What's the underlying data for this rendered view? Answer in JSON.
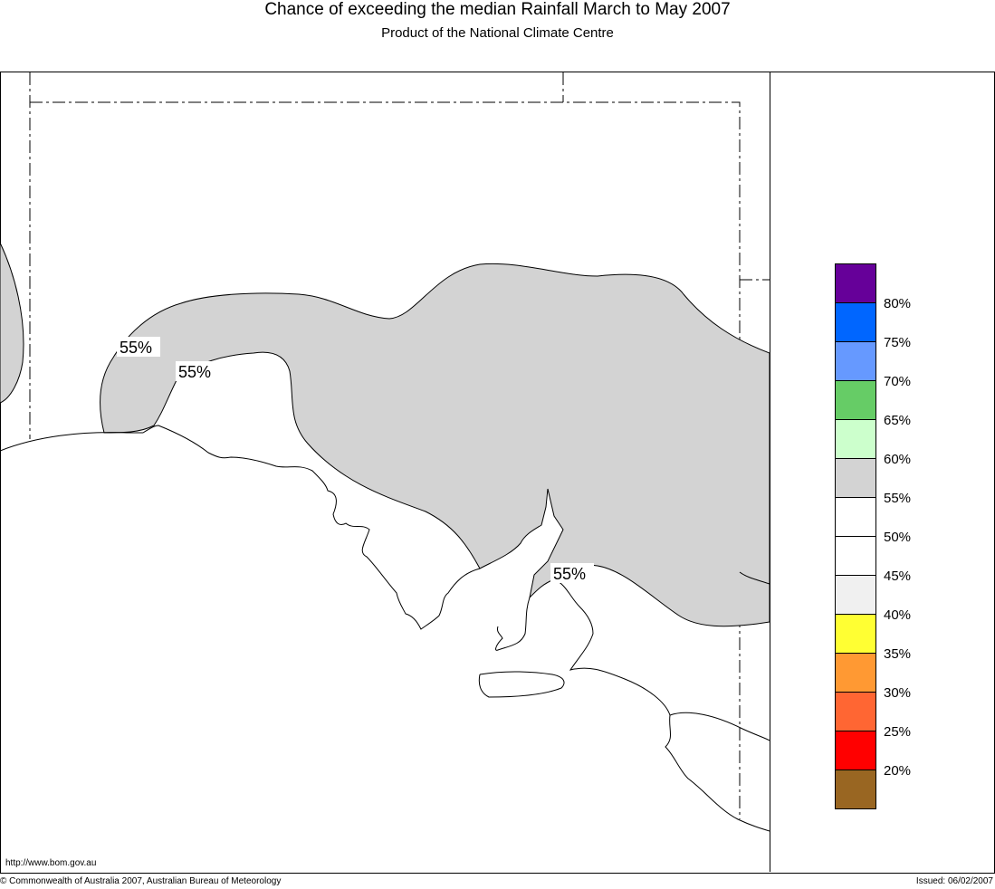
{
  "header": {
    "title": "Chance of exceeding the median Rainfall March to May 2007",
    "subtitle": "Product of the National Climate Centre"
  },
  "map": {
    "region": "South Australia",
    "shaded_band": {
      "range": "55%-60%",
      "color": "#d3d3d3"
    },
    "contour_labels": [
      "55%",
      "55%",
      "55%"
    ]
  },
  "legend": {
    "swatches": [
      {
        "color": "#660099"
      },
      {
        "color": "#0066ff"
      },
      {
        "color": "#6699ff"
      },
      {
        "color": "#66cc66"
      },
      {
        "color": "#ccffcc"
      },
      {
        "color": "#d3d3d3"
      },
      {
        "color": "#ffffff"
      },
      {
        "color": "#ffffff"
      },
      {
        "color": "#f0f0f0"
      },
      {
        "color": "#ffff33"
      },
      {
        "color": "#ff9933"
      },
      {
        "color": "#ff6633"
      },
      {
        "color": "#ff0000"
      },
      {
        "color": "#996622"
      }
    ],
    "labels": [
      "80%",
      "75%",
      "70%",
      "65%",
      "60%",
      "55%",
      "50%",
      "45%",
      "40%",
      "35%",
      "30%",
      "25%",
      "20%"
    ]
  },
  "footer": {
    "url": "http://www.bom.gov.au",
    "copyright": "© Commonwealth of Australia 2007, Australian Bureau of Meteorology",
    "issued": "Issued: 06/02/2007"
  }
}
